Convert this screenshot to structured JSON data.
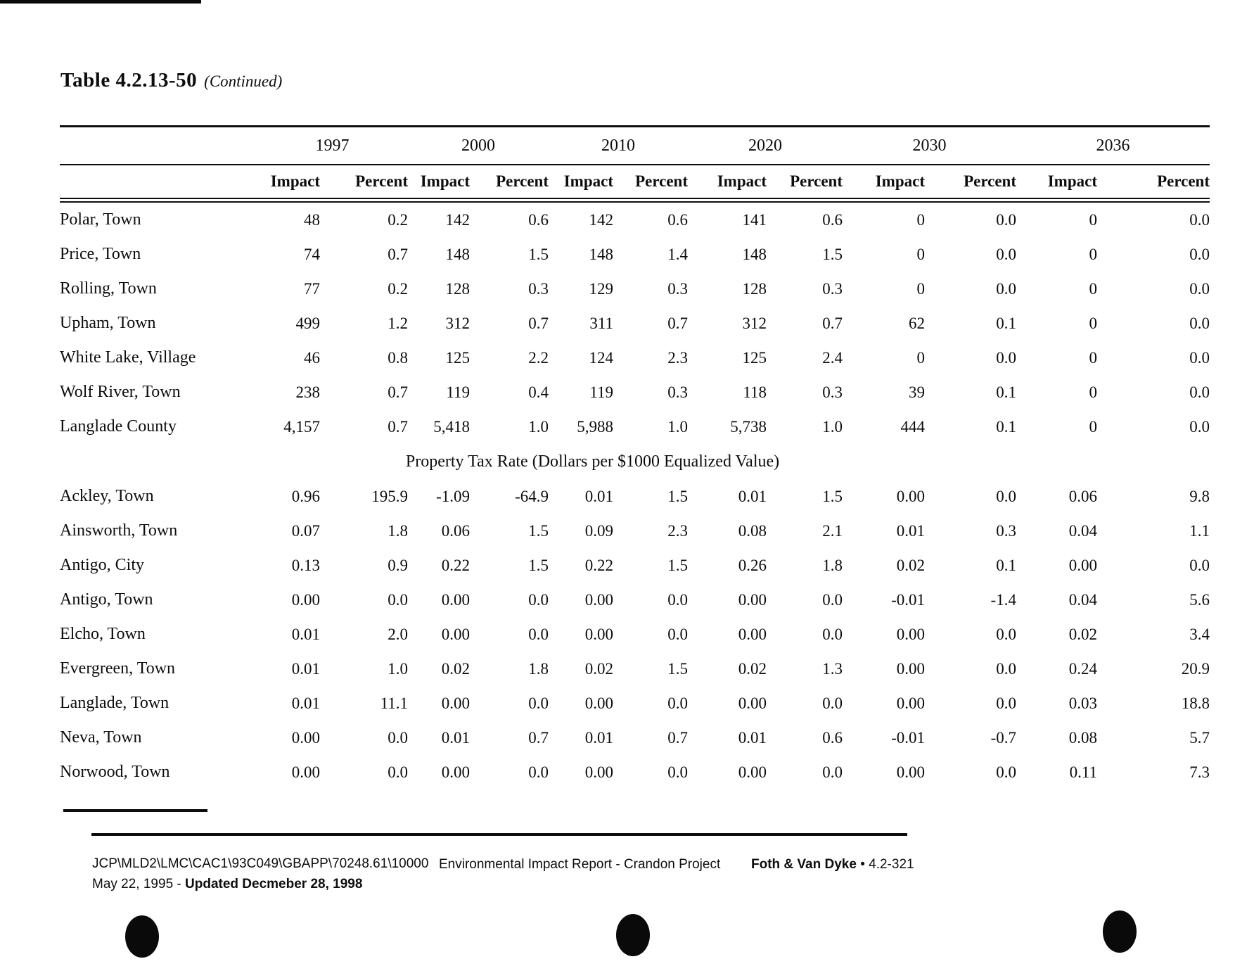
{
  "page": {
    "title": "Table 4.2.13-50",
    "title_suffix": "(Continued)"
  },
  "table": {
    "years": [
      "1997",
      "2000",
      "2010",
      "2020",
      "2030",
      "2036"
    ],
    "sub_headers": [
      "Impact",
      "Percent"
    ],
    "section1_rows": [
      {
        "label": "Polar, Town",
        "values": [
          "48",
          "0.2",
          "142",
          "0.6",
          "142",
          "0.6",
          "141",
          "0.6",
          "0",
          "0.0",
          "0",
          "0.0"
        ]
      },
      {
        "label": "Price, Town",
        "values": [
          "74",
          "0.7",
          "148",
          "1.5",
          "148",
          "1.4",
          "148",
          "1.5",
          "0",
          "0.0",
          "0",
          "0.0"
        ]
      },
      {
        "label": "Rolling, Town",
        "values": [
          "77",
          "0.2",
          "128",
          "0.3",
          "129",
          "0.3",
          "128",
          "0.3",
          "0",
          "0.0",
          "0",
          "0.0"
        ]
      },
      {
        "label": "Upham, Town",
        "values": [
          "499",
          "1.2",
          "312",
          "0.7",
          "311",
          "0.7",
          "312",
          "0.7",
          "62",
          "0.1",
          "0",
          "0.0"
        ]
      },
      {
        "label": "White Lake, Village",
        "values": [
          "46",
          "0.8",
          "125",
          "2.2",
          "124",
          "2.3",
          "125",
          "2.4",
          "0",
          "0.0",
          "0",
          "0.0"
        ]
      },
      {
        "label": "Wolf River, Town",
        "values": [
          "238",
          "0.7",
          "119",
          "0.4",
          "119",
          "0.3",
          "118",
          "0.3",
          "39",
          "0.1",
          "0",
          "0.0"
        ]
      },
      {
        "label": "Langlade County",
        "values": [
          "4,157",
          "0.7",
          "5,418",
          "1.0",
          "5,988",
          "1.0",
          "5,738",
          "1.0",
          "444",
          "0.1",
          "0",
          "0.0"
        ]
      }
    ],
    "section2_title": "Property Tax Rate (Dollars per $1000 Equalized Value)",
    "section2_rows": [
      {
        "label": "Ackley, Town",
        "values": [
          "0.96",
          "195.9",
          "-1.09",
          "-64.9",
          "0.01",
          "1.5",
          "0.01",
          "1.5",
          "0.00",
          "0.0",
          "0.06",
          "9.8"
        ]
      },
      {
        "label": "Ainsworth, Town",
        "values": [
          "0.07",
          "1.8",
          "0.06",
          "1.5",
          "0.09",
          "2.3",
          "0.08",
          "2.1",
          "0.01",
          "0.3",
          "0.04",
          "1.1"
        ]
      },
      {
        "label": "Antigo, City",
        "values": [
          "0.13",
          "0.9",
          "0.22",
          "1.5",
          "0.22",
          "1.5",
          "0.26",
          "1.8",
          "0.02",
          "0.1",
          "0.00",
          "0.0"
        ]
      },
      {
        "label": "Antigo, Town",
        "values": [
          "0.00",
          "0.0",
          "0.00",
          "0.0",
          "0.00",
          "0.0",
          "0.00",
          "0.0",
          "-0.01",
          "-1.4",
          "0.04",
          "5.6"
        ]
      },
      {
        "label": "Elcho, Town",
        "values": [
          "0.01",
          "2.0",
          "0.00",
          "0.0",
          "0.00",
          "0.0",
          "0.00",
          "0.0",
          "0.00",
          "0.0",
          "0.02",
          "3.4"
        ]
      },
      {
        "label": "Evergreen, Town",
        "values": [
          "0.01",
          "1.0",
          "0.02",
          "1.8",
          "0.02",
          "1.5",
          "0.02",
          "1.3",
          "0.00",
          "0.0",
          "0.24",
          "20.9"
        ]
      },
      {
        "label": "Langlade, Town",
        "values": [
          "0.01",
          "11.1",
          "0.00",
          "0.0",
          "0.00",
          "0.0",
          "0.00",
          "0.0",
          "0.00",
          "0.0",
          "0.03",
          "18.8"
        ]
      },
      {
        "label": "Neva, Town",
        "values": [
          "0.00",
          "0.0",
          "0.01",
          "0.7",
          "0.01",
          "0.7",
          "0.01",
          "0.6",
          "-0.01",
          "-0.7",
          "0.08",
          "5.7"
        ]
      },
      {
        "label": "Norwood, Town",
        "values": [
          "0.00",
          "0.0",
          "0.00",
          "0.0",
          "0.00",
          "0.0",
          "0.00",
          "0.0",
          "0.00",
          "0.0",
          "0.11",
          "7.3"
        ]
      }
    ]
  },
  "footer": {
    "file_path": "JCP\\MLD2\\LMC\\CAC1\\93C049\\GBAPP\\70248.61\\10000",
    "date_regular": "May 22, 1995 - ",
    "date_bold": "Updated Decmeber 28, 1998",
    "center": "Environmental Impact Report - Crandon Project",
    "right_bold": "Foth & Van Dyke",
    "right_rest": " • 4.2-321"
  }
}
